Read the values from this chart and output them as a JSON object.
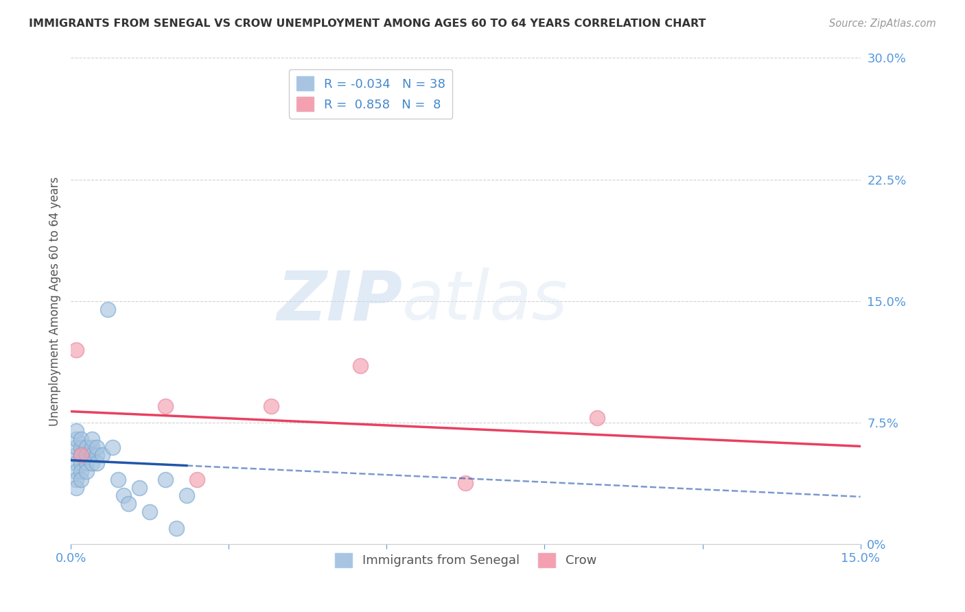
{
  "title": "IMMIGRANTS FROM SENEGAL VS CROW UNEMPLOYMENT AMONG AGES 60 TO 64 YEARS CORRELATION CHART",
  "source": "Source: ZipAtlas.com",
  "ylabel": "Unemployment Among Ages 60 to 64 years",
  "xlim": [
    0.0,
    0.15
  ],
  "ylim": [
    0.0,
    0.3
  ],
  "xticks": [
    0.0,
    0.03,
    0.06,
    0.09,
    0.12,
    0.15
  ],
  "xticklabels_show": [
    "0.0%",
    "15.0%"
  ],
  "xticklabels_pos": [
    0.0,
    0.15
  ],
  "yticks": [
    0.0,
    0.075,
    0.15,
    0.225,
    0.3
  ],
  "yticklabels": [
    "0%",
    "7.5%",
    "15.0%",
    "22.5%",
    "30.0%"
  ],
  "blue_scatter_x": [
    0.001,
    0.001,
    0.001,
    0.001,
    0.001,
    0.001,
    0.001,
    0.001,
    0.002,
    0.002,
    0.002,
    0.002,
    0.002,
    0.002,
    0.002,
    0.003,
    0.003,
    0.003,
    0.003,
    0.003,
    0.004,
    0.004,
    0.004,
    0.004,
    0.005,
    0.005,
    0.005,
    0.006,
    0.007,
    0.008,
    0.009,
    0.01,
    0.011,
    0.013,
    0.015,
    0.018,
    0.02,
    0.022
  ],
  "blue_scatter_y": [
    0.055,
    0.06,
    0.05,
    0.045,
    0.04,
    0.035,
    0.065,
    0.07,
    0.055,
    0.05,
    0.06,
    0.045,
    0.04,
    0.055,
    0.065,
    0.055,
    0.06,
    0.05,
    0.045,
    0.055,
    0.06,
    0.055,
    0.05,
    0.065,
    0.055,
    0.06,
    0.05,
    0.055,
    0.145,
    0.06,
    0.04,
    0.03,
    0.025,
    0.035,
    0.02,
    0.04,
    0.01,
    0.03
  ],
  "pink_scatter_x": [
    0.001,
    0.002,
    0.018,
    0.024,
    0.038,
    0.055,
    0.075,
    0.1
  ],
  "pink_scatter_y": [
    0.12,
    0.055,
    0.085,
    0.04,
    0.085,
    0.11,
    0.038,
    0.078
  ],
  "blue_color": "#a8c4e0",
  "pink_color": "#f4a0b0",
  "blue_line_color": "#2255aa",
  "pink_line_color": "#e84060",
  "R_blue": -0.034,
  "N_blue": 38,
  "R_pink": 0.858,
  "N_pink": 8,
  "legend_label_blue": "Immigrants from Senegal",
  "legend_label_pink": "Crow",
  "watermark_zip": "ZIP",
  "watermark_atlas": "atlas",
  "background_color": "#ffffff",
  "grid_color": "#cccccc",
  "tick_color": "#5599dd",
  "title_color": "#333333",
  "source_color": "#999999"
}
